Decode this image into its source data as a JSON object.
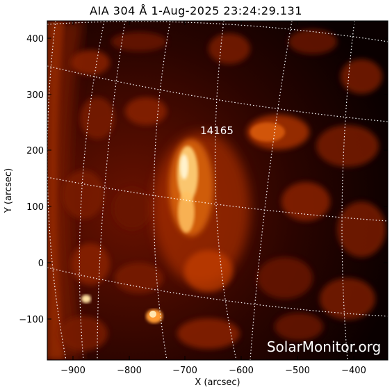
{
  "title": "AIA 304 Å  1-Aug-2025 23:24:29.131",
  "xlabel": "X (arcsec)",
  "ylabel": "Y (arcsec)",
  "x_ticks": [
    "−900",
    "−800",
    "−700",
    "−600",
    "−500",
    "−400"
  ],
  "y_ticks": [
    "400",
    "300",
    "200",
    "100",
    "0",
    "−100"
  ],
  "region_label": "14165",
  "watermark": "SolarMonitor.org",
  "colors": {
    "background": "#000000",
    "hot": "#ffe9b0",
    "mid": "#c03000",
    "dark": "#3a0500"
  }
}
